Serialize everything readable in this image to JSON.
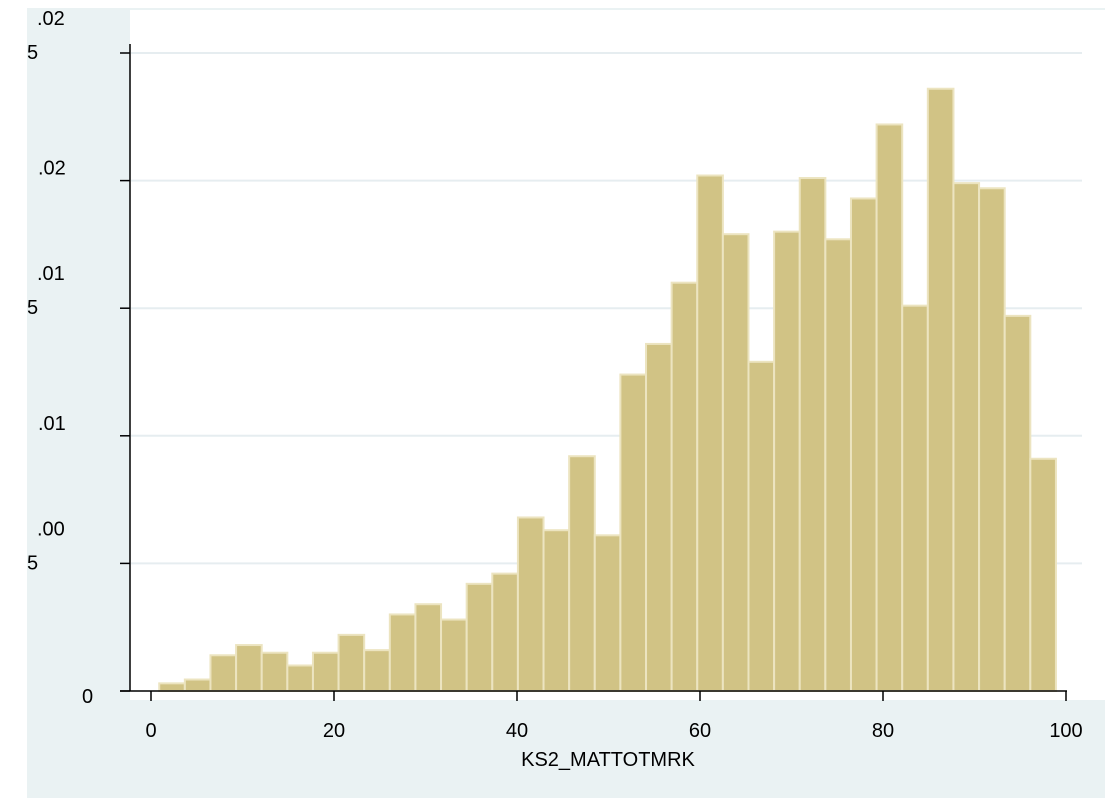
{
  "chart_data": {
    "type": "bar",
    "title": "",
    "xlabel": "KS2_MATTOTMRK",
    "ylabel": "",
    "xlim": [
      0,
      100
    ],
    "ylim": [
      0,
      0.025
    ],
    "grid": true,
    "bin_width": 2.8,
    "bin_edges_start": 0.9,
    "values": [
      0.0003,
      0.00045,
      0.0014,
      0.0018,
      0.0015,
      0.001,
      0.0015,
      0.0022,
      0.0016,
      0.003,
      0.0034,
      0.0028,
      0.0042,
      0.0046,
      0.0068,
      0.0063,
      0.0092,
      0.0061,
      0.0124,
      0.0136,
      0.016,
      0.0202,
      0.0179,
      0.0129,
      0.018,
      0.0201,
      0.0177,
      0.0193,
      0.0222,
      0.0151,
      0.0236,
      0.0199,
      0.0197,
      0.0147,
      0.0091
    ],
    "x_ticks": [
      "0",
      "20",
      "40",
      "60",
      "80",
      "100"
    ],
    "y_ticks": [
      {
        "value": 0,
        "line1": "0",
        "line2": ""
      },
      {
        "value": 0.005,
        "line1": ".00",
        "line2": "5"
      },
      {
        "value": 0.01,
        "line1": ".01",
        "line2": ""
      },
      {
        "value": 0.015,
        "line1": ".01",
        "line2": "5"
      },
      {
        "value": 0.02,
        "line1": ".02",
        "line2": ""
      },
      {
        "value": 0.025,
        "line1": ".02",
        "line2": "5"
      }
    ],
    "colors": {
      "outer_background": "#eaf2f3",
      "plot_background": "#ffffff",
      "bar_fill": "#d1c385",
      "bar_stroke": "#e8df b8",
      "grid": "#e9eef0",
      "axis": "#000000"
    }
  }
}
